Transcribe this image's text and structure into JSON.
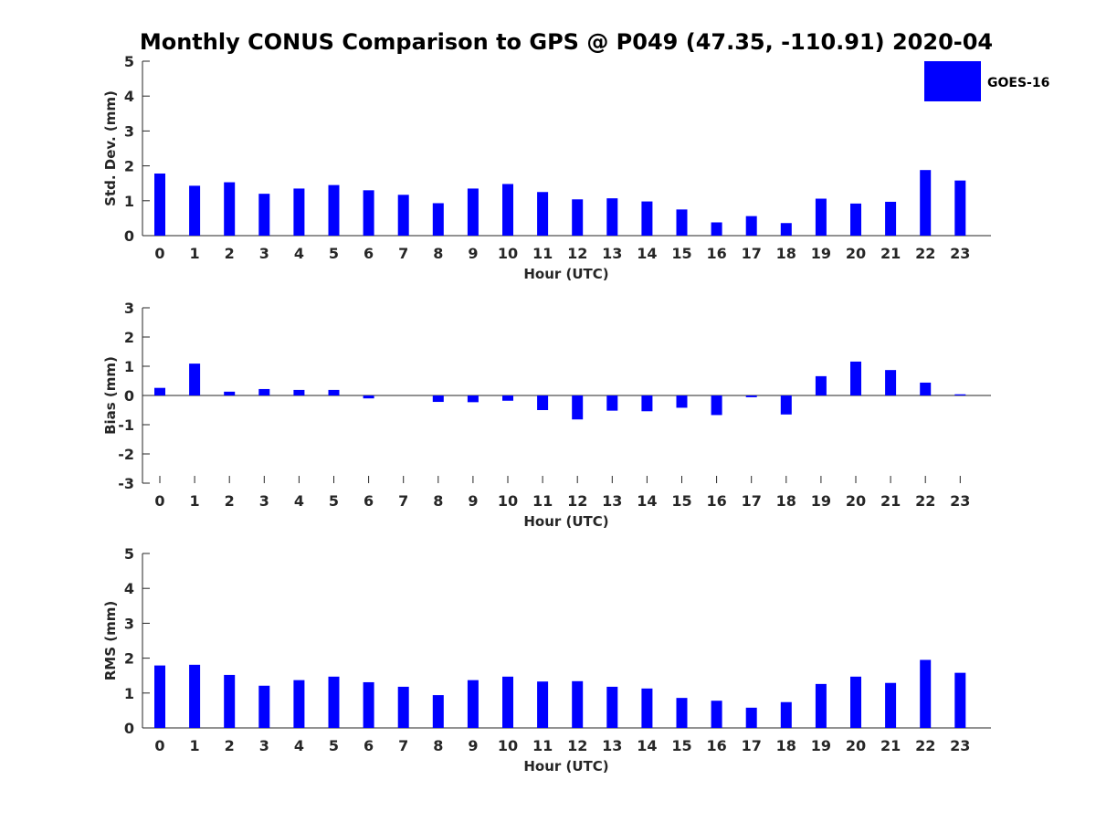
{
  "chart_data": {
    "title": "Monthly CONUS Comparison to GPS @ P049 (47.35, -110.91) 2020-04",
    "legend": {
      "label": "GOES-16",
      "color": "#0000ff",
      "placement": "top-right"
    },
    "charts": [
      {
        "type": "bar",
        "id": "std",
        "xlabel": "Hour (UTC)",
        "ylabel": "Std. Dev. (mm)",
        "ylim": [
          0,
          5
        ],
        "yticks": [
          0,
          1,
          2,
          3,
          4,
          5
        ],
        "categories": [
          "0",
          "1",
          "2",
          "3",
          "4",
          "5",
          "6",
          "7",
          "8",
          "9",
          "10",
          "11",
          "12",
          "13",
          "14",
          "15",
          "16",
          "17",
          "18",
          "19",
          "20",
          "21",
          "22",
          "23"
        ],
        "values": [
          1.78,
          1.43,
          1.53,
          1.2,
          1.35,
          1.45,
          1.3,
          1.17,
          0.93,
          1.35,
          1.48,
          1.25,
          1.04,
          1.07,
          0.98,
          0.75,
          0.38,
          0.56,
          0.36,
          1.06,
          0.92,
          0.97,
          1.88,
          1.58
        ]
      },
      {
        "type": "bar",
        "id": "bias",
        "xlabel": "Hour (UTC)",
        "ylabel": "Bias (mm)",
        "ylim": [
          -3,
          3
        ],
        "yticks": [
          -3,
          -2,
          -1,
          0,
          1,
          2,
          3
        ],
        "categories": [
          "0",
          "1",
          "2",
          "3",
          "4",
          "5",
          "6",
          "7",
          "8",
          "9",
          "10",
          "11",
          "12",
          "13",
          "14",
          "15",
          "16",
          "17",
          "18",
          "19",
          "20",
          "21",
          "22",
          "23"
        ],
        "values": [
          0.26,
          1.09,
          0.13,
          0.22,
          0.19,
          0.19,
          -0.1,
          0.0,
          -0.22,
          -0.23,
          -0.18,
          -0.5,
          -0.82,
          -0.52,
          -0.54,
          -0.42,
          -0.67,
          -0.06,
          -0.65,
          0.66,
          1.16,
          0.87,
          0.44,
          0.04
        ],
        "zero_line": true
      },
      {
        "type": "bar",
        "id": "rms",
        "xlabel": "Hour (UTC)",
        "ylabel": "RMS (mm)",
        "ylim": [
          0,
          5
        ],
        "yticks": [
          0,
          1,
          2,
          3,
          4,
          5
        ],
        "categories": [
          "0",
          "1",
          "2",
          "3",
          "4",
          "5",
          "6",
          "7",
          "8",
          "9",
          "10",
          "11",
          "12",
          "13",
          "14",
          "15",
          "16",
          "17",
          "18",
          "19",
          "20",
          "21",
          "22",
          "23"
        ],
        "values": [
          1.79,
          1.81,
          1.52,
          1.21,
          1.37,
          1.47,
          1.31,
          1.18,
          0.94,
          1.37,
          1.47,
          1.33,
          1.34,
          1.18,
          1.13,
          0.86,
          0.78,
          0.58,
          0.74,
          1.26,
          1.47,
          1.29,
          1.95,
          1.58
        ]
      }
    ]
  }
}
